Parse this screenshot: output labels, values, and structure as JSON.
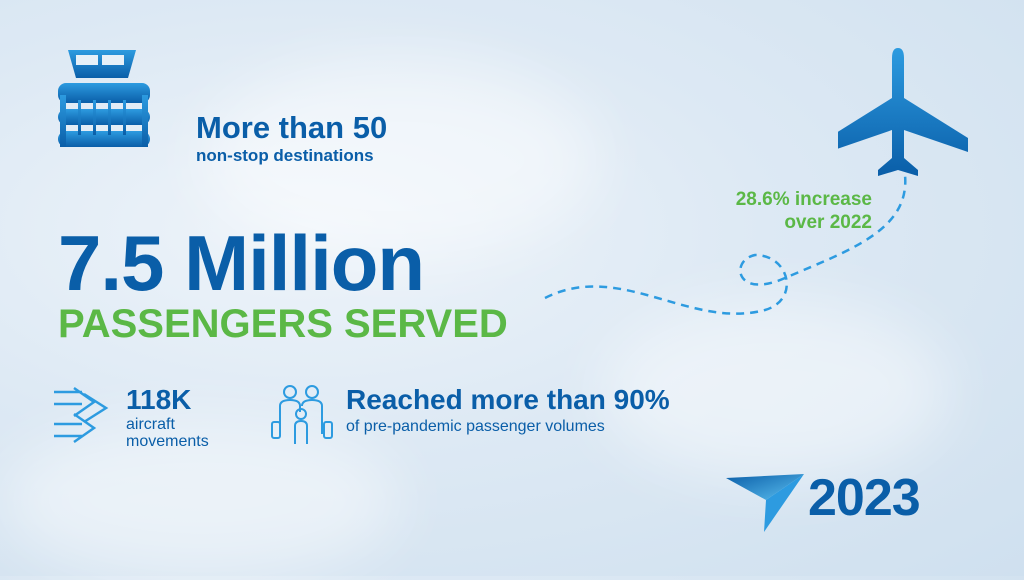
{
  "destinations": {
    "headline": "More than 50",
    "sub": "non-stop destinations"
  },
  "passengers": {
    "headline": "7.5 Million",
    "sub": "PASSENGERS SERVED"
  },
  "increase": {
    "line1": "28.6% increase",
    "line2": "over 2022"
  },
  "movements": {
    "headline": "118K",
    "line1": "aircraft",
    "line2": "movements"
  },
  "recovery": {
    "headline": "Reached more than 90%",
    "sub": "of pre-pandemic passenger volumes"
  },
  "year": "2023",
  "colors": {
    "blue": "#0a5ea8",
    "light_blue": "#2d9be0",
    "green": "#5bb846"
  },
  "icons": [
    "airport-terminal-icon",
    "airplane-icon",
    "arrows-icon",
    "family-icon",
    "logo-icon"
  ]
}
